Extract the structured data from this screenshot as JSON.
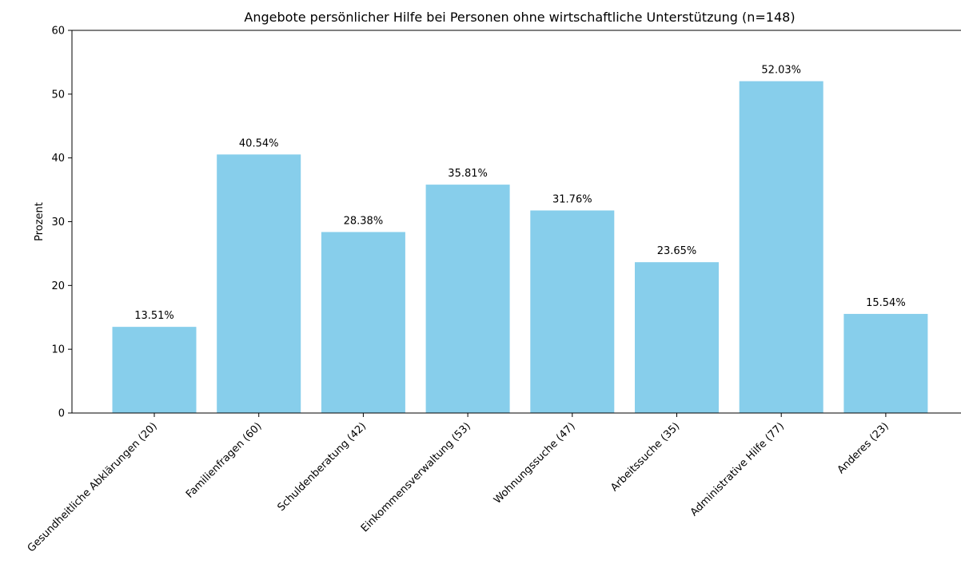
{
  "chart_data": {
    "type": "bar",
    "title": "Angebote persönlicher Hilfe bei Personen ohne wirtschaftliche Unterstützung (n=148)",
    "xlabel": "",
    "ylabel": "Prozent",
    "ylim": [
      0,
      60
    ],
    "yticks": [
      "0",
      "10",
      "20",
      "30",
      "40",
      "50",
      "60"
    ],
    "categories": [
      "Gesundheitliche Abklärungen (20)",
      "Familienfragen (60)",
      "Schuldenberatung (42)",
      "Einkommensverwaltung (53)",
      "Wohnungssuche (47)",
      "Arbeitssuche (35)",
      "Administrative Hilfe (77)",
      "Anderes (23)"
    ],
    "values": [
      13.51,
      40.54,
      28.38,
      35.81,
      31.76,
      23.65,
      52.03,
      15.54
    ],
    "data_labels": [
      "13.51%",
      "40.54%",
      "28.38%",
      "35.81%",
      "31.76%",
      "23.65%",
      "52.03%",
      "15.54%"
    ],
    "bar_color": "#87ceeb",
    "grid": false,
    "legend": "none"
  }
}
